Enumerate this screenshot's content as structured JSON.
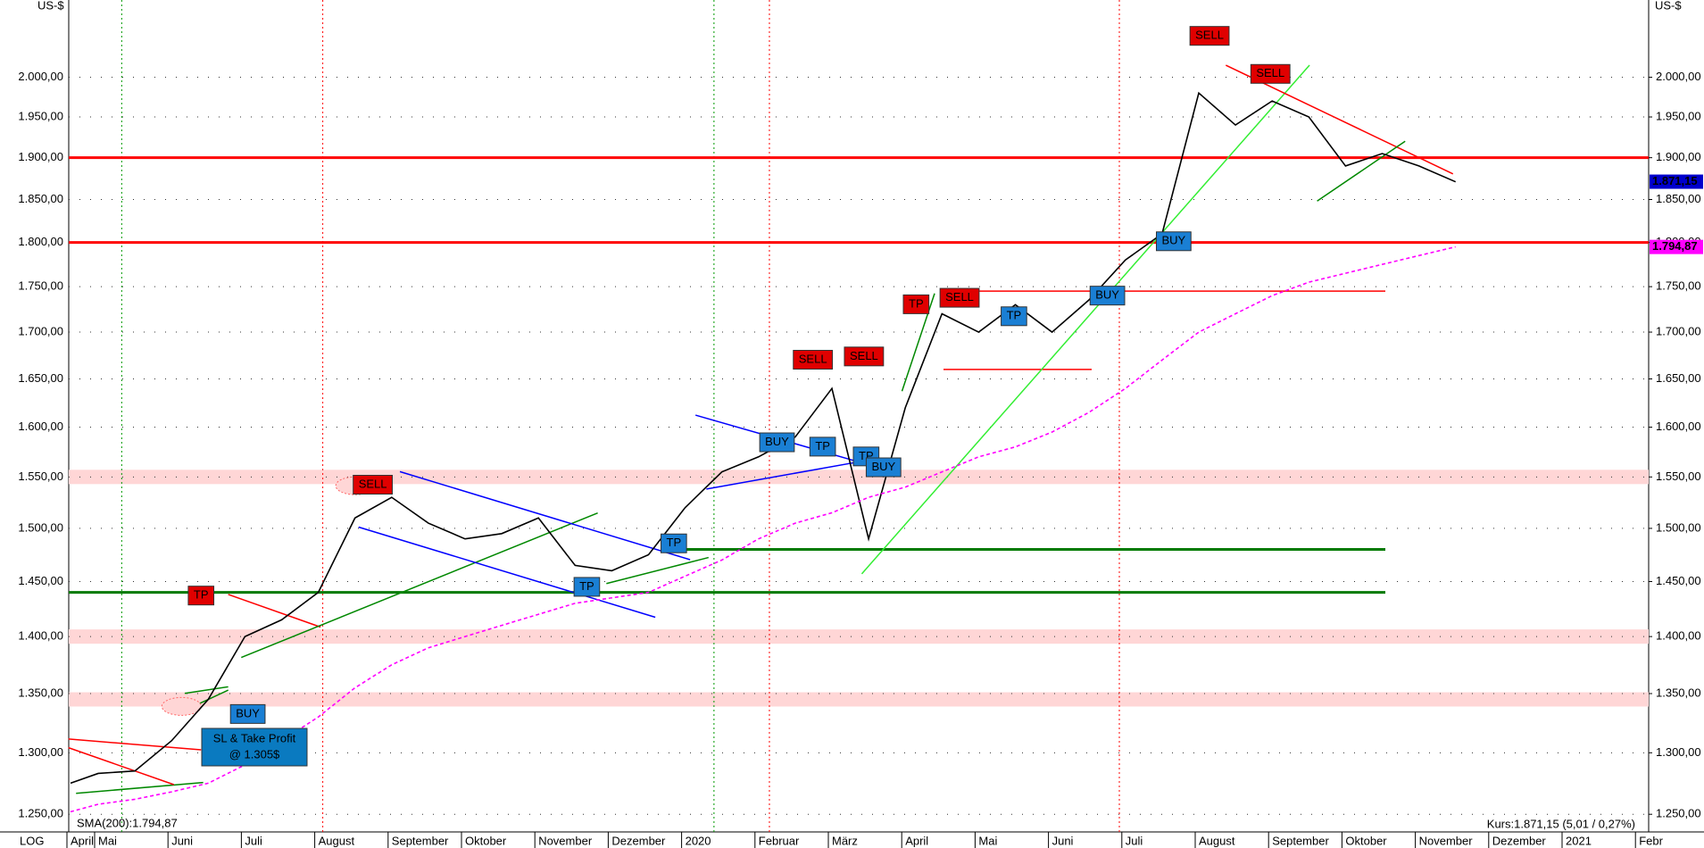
{
  "chart_data": {
    "type": "line",
    "log_scale": true,
    "scale_label": "LOG",
    "y_unit": "US-$",
    "categories": [
      "April",
      "Mai",
      null,
      "Juni",
      null,
      "Juli",
      null,
      "August",
      null,
      "September",
      null,
      "Oktober",
      null,
      "November",
      null,
      "Dezember",
      null,
      "2020",
      null,
      "Februar",
      null,
      "März",
      null,
      "April",
      null,
      "Mai",
      null,
      "Juni",
      null,
      "Juli",
      null,
      "August",
      null,
      "September",
      null,
      "Oktober",
      null,
      "November",
      null,
      "Dezember",
      null,
      "2021",
      null,
      "Febr"
    ],
    "series": [
      {
        "color": "#000000",
        "values": [
          1275,
          1283,
          1285,
          1310,
          1345,
          1400,
          1415,
          1440,
          1510,
          1530,
          1505,
          1490,
          1495,
          1510,
          1465,
          1460,
          1475,
          1520,
          1555,
          1570,
          1590,
          1640,
          1490,
          1620,
          1720,
          1700,
          1730,
          1700,
          1735,
          1780,
          1810,
          1980,
          1940,
          1970,
          1950,
          1890,
          1905,
          1890,
          1871,
          null,
          null,
          null,
          null,
          null
        ]
      },
      {
        "name": "SMA(200):1.794,87",
        "color": "#ff00ff",
        "values": [
          1252,
          1258,
          1262,
          1268,
          1275,
          1290,
          1310,
          1330,
          1355,
          1375,
          1390,
          1400,
          1410,
          1420,
          1430,
          1435,
          1440,
          1455,
          1470,
          1490,
          1505,
          1515,
          1530,
          1540,
          1555,
          1570,
          1580,
          1595,
          1615,
          1640,
          1670,
          1700,
          1720,
          1740,
          1755,
          1765,
          1775,
          1785,
          1795,
          null,
          null,
          null,
          null,
          null
        ]
      }
    ],
    "ylim": [
      1236,
      2101
    ],
    "yticks": [
      {
        "value": 1250,
        "label": "1.250,00"
      },
      {
        "value": 1300,
        "label": "1.300,00"
      },
      {
        "value": 1350,
        "label": "1.350,00"
      },
      {
        "value": 1400,
        "label": "1.400,00"
      },
      {
        "value": 1450,
        "label": "1.450,00"
      },
      {
        "value": 1500,
        "label": "1.500,00"
      },
      {
        "value": 1550,
        "label": "1.550,00"
      },
      {
        "value": 1600,
        "label": "1.600,00"
      },
      {
        "value": 1650,
        "label": "1.650,00"
      },
      {
        "value": 1700,
        "label": "1.700,00"
      },
      {
        "value": 1750,
        "label": "1.750,00"
      },
      {
        "value": 1800,
        "label": "1.800,00"
      },
      {
        "value": 1850,
        "label": "1.850,00"
      },
      {
        "value": 1900,
        "label": "1.900,00"
      },
      {
        "value": 1950,
        "label": "1.950,00"
      },
      {
        "value": 2000,
        "label": "2.000,00"
      }
    ],
    "grid": true,
    "levels": [
      {
        "value": 1900,
        "color": "#ff0000"
      },
      {
        "value": 1800,
        "color": "#ff0000"
      },
      {
        "value": 1745,
        "color": "#ff0000"
      },
      {
        "value": 1660,
        "color": "#ff0000"
      },
      {
        "value": 1480,
        "color": "#007a00"
      },
      {
        "value": 1440,
        "color": "#007a00"
      }
    ],
    "zones": [
      1550,
      1400,
      1345
    ],
    "zone_color": "#ffd6d6",
    "last_price": {
      "value": 1871.15,
      "label": "1.871,15",
      "color": "#0000cc"
    },
    "sma_last": {
      "value": 1794.87,
      "label": "1.794,87",
      "color": "#ff00ff"
    },
    "quote": "Kurs:1.871,15 (5,01 / 0,27%)",
    "annotations": [
      {
        "text": "TP",
        "color": "#e00000"
      },
      {
        "text": "BUY",
        "color": "#1a7fd4"
      },
      {
        "text": "SELL",
        "color": "#e00000"
      },
      {
        "text": "TP",
        "color": "#1a7fd4"
      },
      {
        "text": "TP",
        "color": "#1a7fd4"
      },
      {
        "text": "BUY",
        "color": "#1a7fd4"
      },
      {
        "text": "TP",
        "color": "#1a7fd4"
      },
      {
        "text": "SELL",
        "color": "#e00000"
      },
      {
        "text": "SELL",
        "color": "#e00000"
      },
      {
        "text": "TP",
        "color": "#1a7fd4"
      },
      {
        "text": "BUY",
        "color": "#1a7fd4"
      },
      {
        "text": "TP",
        "color": "#e00000"
      },
      {
        "text": "SELL",
        "color": "#e00000"
      },
      {
        "text": "TP",
        "color": "#1a7fd4"
      },
      {
        "text": "BUY",
        "color": "#1a7fd4"
      },
      {
        "text": "BUY",
        "color": "#1a7fd4"
      },
      {
        "text": "SELL",
        "color": "#e00000"
      },
      {
        "text": "SELL",
        "color": "#e00000"
      }
    ],
    "note": {
      "lines": [
        "SL & Take Profit",
        "@ 1.305$"
      ],
      "color": "#0a7ac0"
    }
  }
}
